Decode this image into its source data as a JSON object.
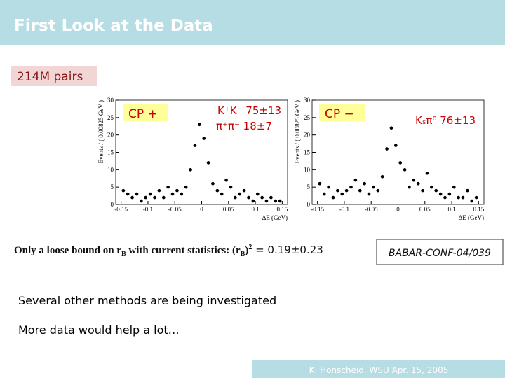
{
  "header": {
    "title": "First Look at the Data"
  },
  "badge": "214M pairs",
  "chart_data": [
    {
      "type": "scatter",
      "label": "CP +",
      "annotations": [
        "K⁺K⁻  75±13",
        "π⁺π⁻  18±7"
      ],
      "x_label": "ΔE (GeV)",
      "y_label": "Events / ( 0.00825 GeV )",
      "color": "#000000",
      "x": [
        -0.1458,
        -0.1375,
        -0.1292,
        -0.1208,
        -0.1125,
        -0.1042,
        -0.0958,
        -0.0875,
        -0.0792,
        -0.0708,
        -0.0625,
        -0.0542,
        -0.0458,
        -0.0375,
        -0.0292,
        -0.0208,
        -0.0125,
        -0.0042,
        0.0042,
        0.0125,
        0.0208,
        0.0292,
        0.0375,
        0.0458,
        0.0542,
        0.0625,
        0.0708,
        0.0792,
        0.0875,
        0.0958,
        0.1042,
        0.1125,
        0.1208,
        0.1292,
        0.1375,
        0.1458
      ],
      "values": [
        4,
        3,
        2,
        3,
        1,
        2,
        3,
        2,
        4,
        2,
        5,
        3,
        4,
        3,
        5,
        10,
        17,
        23,
        19,
        12,
        6,
        4,
        3,
        7,
        5,
        2,
        3,
        4,
        2,
        1,
        3,
        2,
        1,
        2,
        1,
        1
      ],
      "xlim": [
        -0.16,
        0.16
      ],
      "ylim": [
        0,
        30
      ],
      "xticks": [
        -0.15,
        -0.1,
        -0.05,
        0,
        0.05,
        0.1,
        0.15
      ],
      "yticks": [
        0,
        5,
        10,
        15,
        20,
        25,
        30
      ]
    },
    {
      "type": "scatter",
      "label": "CP −",
      "annotations": [
        "Kₛπ⁰  76±13"
      ],
      "x_label": "ΔE (GeV)",
      "y_label": "Events / ( 0.00825 GeV )",
      "color": "#000000",
      "x": [
        -0.1458,
        -0.1375,
        -0.1292,
        -0.1208,
        -0.1125,
        -0.1042,
        -0.0958,
        -0.0875,
        -0.0792,
        -0.0708,
        -0.0625,
        -0.0542,
        -0.0458,
        -0.0375,
        -0.0292,
        -0.0208,
        -0.0125,
        -0.0042,
        0.0042,
        0.0125,
        0.0208,
        0.0292,
        0.0375,
        0.0458,
        0.0542,
        0.0625,
        0.0708,
        0.0792,
        0.0875,
        0.0958,
        0.1042,
        0.1125,
        0.1208,
        0.1292,
        0.1375,
        0.1458
      ],
      "values": [
        6,
        3,
        5,
        2,
        4,
        3,
        4,
        5,
        7,
        4,
        6,
        3,
        5,
        4,
        8,
        16,
        22,
        17,
        12,
        10,
        5,
        7,
        6,
        4,
        9,
        5,
        4,
        3,
        2,
        3,
        5,
        2,
        2,
        4,
        1,
        2
      ],
      "xlim": [
        -0.16,
        0.16
      ],
      "ylim": [
        0,
        30
      ],
      "xticks": [
        -0.15,
        -0.1,
        -0.05,
        0,
        0.05,
        0.1,
        0.15
      ],
      "yticks": [
        0,
        5,
        10,
        15,
        20,
        25,
        30
      ]
    }
  ],
  "bound_text": [
    "Only a loose bound on r",
    "B",
    " with current statistics: (r",
    "B",
    ")",
    "2",
    " = 0.19±0.23"
  ],
  "reference": "BABAR-CONF-04/039",
  "bullets": [
    "Several other methods are being investigated",
    "More data would help a lot…"
  ],
  "footer": "K. Honscheid, WSU  Apr. 15, 2005"
}
